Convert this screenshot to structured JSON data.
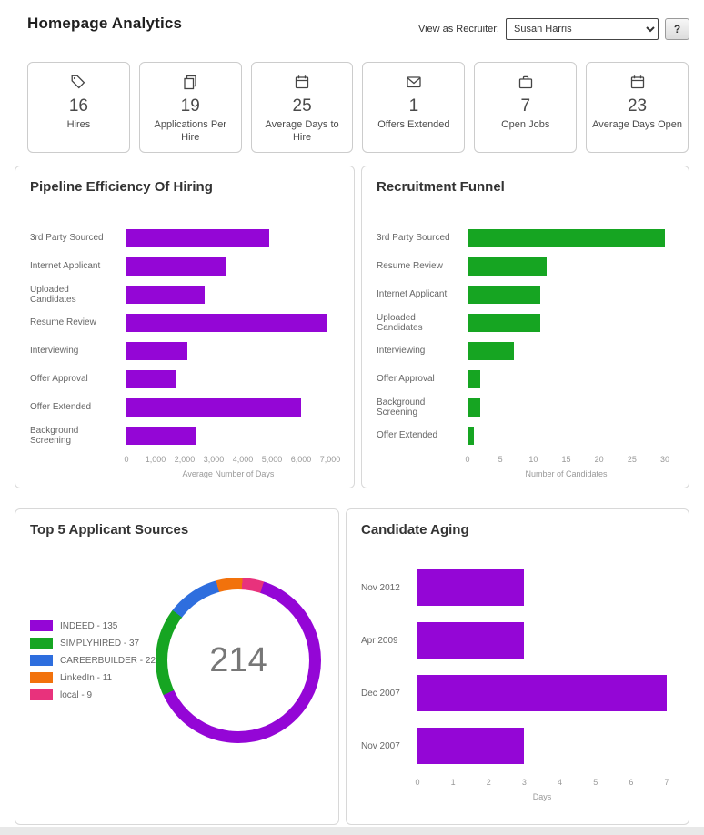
{
  "header": {
    "title": "Homepage Analytics",
    "view_as_label": "View as Recruiter:",
    "recruiter_selected": "Susan Harris",
    "help_button": "?"
  },
  "kpis": [
    {
      "icon": "tag-icon",
      "value": "16",
      "label": "Hires"
    },
    {
      "icon": "copy-icon",
      "value": "19",
      "label": "Applications Per Hire"
    },
    {
      "icon": "calendar-icon",
      "value": "25",
      "label": "Average Days to Hire"
    },
    {
      "icon": "envelope-icon",
      "value": "1",
      "label": "Offers Extended"
    },
    {
      "icon": "briefcase-icon",
      "value": "7",
      "label": "Open Jobs"
    },
    {
      "icon": "calendar-icon",
      "value": "23",
      "label": "Average Days Open"
    }
  ],
  "chart_data": [
    {
      "type": "bar",
      "orientation": "horizontal",
      "title": "Pipeline Efficiency Of Hiring",
      "categories": [
        "3rd Party Sourced",
        "Internet Applicant",
        "Uploaded Candidates",
        "Resume Review",
        "Interviewing",
        "Offer Approval",
        "Offer Extended",
        "Background Screening"
      ],
      "values": [
        4900,
        3400,
        2700,
        6900,
        2100,
        1700,
        6000,
        2400
      ],
      "xlabel": "Average Number of Days",
      "xlim": [
        0,
        7000
      ],
      "ticks": [
        0,
        1000,
        2000,
        3000,
        4000,
        5000,
        6000,
        7000
      ],
      "tick_labels": [
        "0",
        "1,000",
        "2,000",
        "3,000",
        "4,000",
        "5,000",
        "6,000",
        "7,000"
      ],
      "bar_color": "#9406d6",
      "grid": false,
      "legend": "none"
    },
    {
      "type": "bar",
      "orientation": "horizontal",
      "title": "Recruitment Funnel",
      "categories": [
        "3rd Party Sourced",
        "Resume Review",
        "Internet Applicant",
        "Uploaded Candidates",
        "Interviewing",
        "Offer Approval",
        "Background Screening",
        "Offer Extended"
      ],
      "values": [
        30,
        12,
        11,
        11,
        7,
        2,
        2,
        1
      ],
      "xlabel": "Number of Candidates",
      "xlim": [
        0,
        30
      ],
      "ticks": [
        0,
        5,
        10,
        15,
        20,
        25,
        30
      ],
      "tick_labels": [
        "0",
        "5",
        "10",
        "15",
        "20",
        "25",
        "30"
      ],
      "bar_color": "#16a522",
      "grid": false,
      "legend": "none"
    },
    {
      "type": "pie",
      "title": "Top 5 Applicant Sources",
      "center_total": "214",
      "donut": true,
      "legend_position": "left",
      "slices": [
        {
          "label": "INDEED - 135",
          "name": "INDEED",
          "value": 135,
          "color": "#9406d6"
        },
        {
          "label": "SIMPLYHIRED - 37",
          "name": "SIMPLYHIRED",
          "value": 37,
          "color": "#16a522"
        },
        {
          "label": "CAREERBUILDER - 22",
          "name": "CAREERBUILDER",
          "value": 22,
          "color": "#2e6ede"
        },
        {
          "label": "LinkedIn - 11",
          "name": "LinkedIn",
          "value": 11,
          "color": "#f2720c"
        },
        {
          "label": "local - 9",
          "name": "local",
          "value": 9,
          "color": "#e8327c"
        }
      ]
    },
    {
      "type": "bar",
      "orientation": "horizontal",
      "title": "Candidate Aging",
      "categories": [
        "Nov 2012",
        "Apr 2009",
        "Dec 2007",
        "Nov 2007"
      ],
      "values": [
        3,
        3,
        7,
        3
      ],
      "xlabel": "Days",
      "xlim": [
        0,
        7
      ],
      "ticks": [
        0,
        1,
        2,
        3,
        4,
        5,
        6,
        7
      ],
      "tick_labels": [
        "0",
        "1",
        "2",
        "3",
        "4",
        "5",
        "6",
        "7"
      ],
      "bar_color": "#9406d6",
      "grid": false,
      "legend": "none"
    }
  ]
}
